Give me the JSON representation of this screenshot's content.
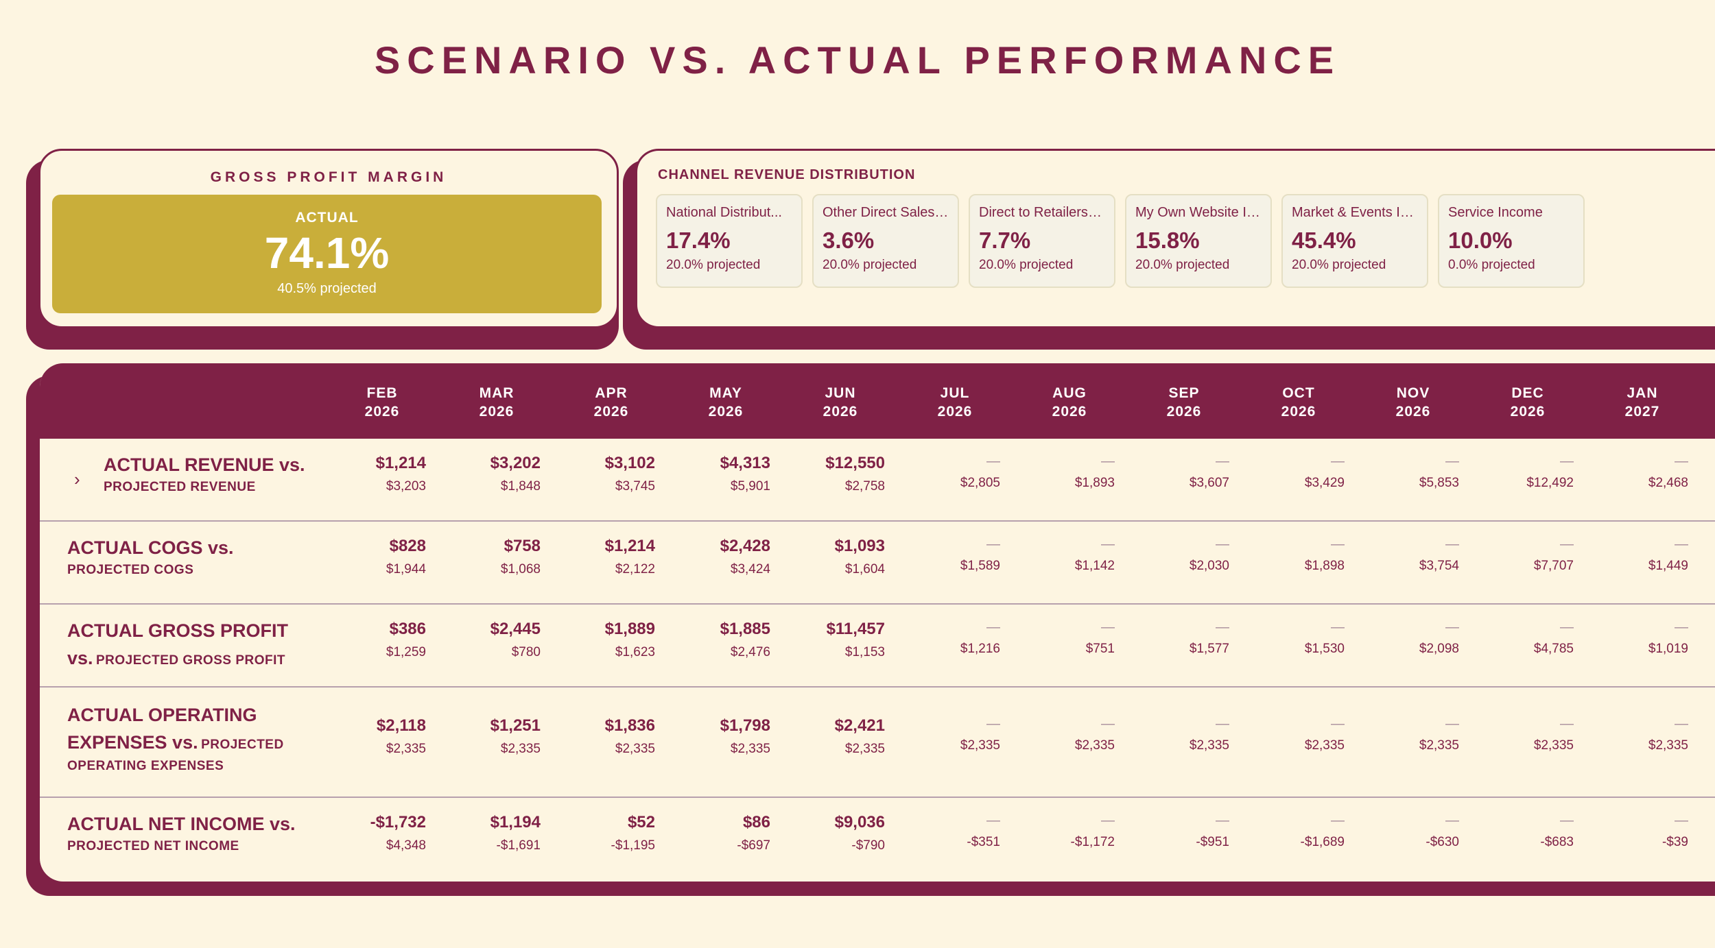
{
  "title": "SCENARIO VS. ACTUAL PERFORMANCE",
  "gross_profit": {
    "title": "GROSS PROFIT MARGIN",
    "label": "ACTUAL",
    "value": "74.1%",
    "projected": "40.5% projected"
  },
  "channels": {
    "title": "CHANNEL REVENUE DISTRIBUTION",
    "items": [
      {
        "name": "National Distribut...",
        "pct": "17.4%",
        "projected": "20.0% projected"
      },
      {
        "name": "Other Direct Sales ...",
        "pct": "3.6%",
        "projected": "20.0% projected"
      },
      {
        "name": "Direct to Retailers I...",
        "pct": "7.7%",
        "projected": "20.0% projected"
      },
      {
        "name": "My Own Website In...",
        "pct": "15.8%",
        "projected": "20.0% projected"
      },
      {
        "name": "Market & Events In...",
        "pct": "45.4%",
        "projected": "20.0% projected"
      },
      {
        "name": "Service Income",
        "pct": "10.0%",
        "projected": "0.0% projected"
      }
    ]
  },
  "table": {
    "columns": [
      {
        "month": "FEB",
        "year": "2026"
      },
      {
        "month": "MAR",
        "year": "2026"
      },
      {
        "month": "APR",
        "year": "2026"
      },
      {
        "month": "MAY",
        "year": "2026"
      },
      {
        "month": "JUN",
        "year": "2026"
      },
      {
        "month": "JUL",
        "year": "2026"
      },
      {
        "month": "AUG",
        "year": "2026"
      },
      {
        "month": "SEP",
        "year": "2026"
      },
      {
        "month": "OCT",
        "year": "2026"
      },
      {
        "month": "NOV",
        "year": "2026"
      },
      {
        "month": "DEC",
        "year": "2026"
      },
      {
        "month": "JAN",
        "year": "2027"
      }
    ],
    "dash": "—",
    "rows": [
      {
        "label_l1": "ACTUAL REVENUE vs.",
        "label_l2": "PROJECTED REVENUE",
        "actual": [
          "$1,214",
          "$3,202",
          "$3,102",
          "$4,313",
          "$12,550"
        ],
        "projected": [
          "$3,203",
          "$1,848",
          "$3,745",
          "$5,901",
          "$2,758",
          "$2,805",
          "$1,893",
          "$3,607",
          "$3,429",
          "$5,853",
          "$12,492",
          "$2,468"
        ]
      },
      {
        "label_l1": "ACTUAL COGS vs.",
        "label_l2": "PROJECTED COGS",
        "actual": [
          "$828",
          "$758",
          "$1,214",
          "$2,428",
          "$1,093"
        ],
        "projected": [
          "$1,944",
          "$1,068",
          "$2,122",
          "$3,424",
          "$1,604",
          "$1,589",
          "$1,142",
          "$2,030",
          "$1,898",
          "$3,754",
          "$7,707",
          "$1,449"
        ]
      },
      {
        "label_l1": "ACTUAL GROSS PROFIT",
        "label_l2a": "vs.",
        "label_l2b": "PROJECTED GROSS PROFIT",
        "actual": [
          "$386",
          "$2,445",
          "$1,889",
          "$1,885",
          "$11,457"
        ],
        "projected": [
          "$1,259",
          "$780",
          "$1,623",
          "$2,476",
          "$1,153",
          "$1,216",
          "$751",
          "$1,577",
          "$1,530",
          "$2,098",
          "$4,785",
          "$1,019"
        ]
      },
      {
        "label_l1": "ACTUAL OPERATING",
        "label_l2a": "EXPENSES vs.",
        "label_l2b": "PROJECTED",
        "label_l3": "OPERATING EXPENSES",
        "actual": [
          "$2,118",
          "$1,251",
          "$1,836",
          "$1,798",
          "$2,421"
        ],
        "projected": [
          "$2,335",
          "$2,335",
          "$2,335",
          "$2,335",
          "$2,335",
          "$2,335",
          "$2,335",
          "$2,335",
          "$2,335",
          "$2,335",
          "$2,335",
          "$2,335"
        ]
      },
      {
        "label_l1": "ACTUAL NET INCOME vs.",
        "label_l2": "PROJECTED NET INCOME",
        "actual": [
          "-$1,732",
          "$1,194",
          "$52",
          "$86",
          "$9,036"
        ],
        "projected": [
          "$4,348",
          "-$1,691",
          "-$1,195",
          "-$697",
          "-$790",
          "-$351",
          "-$1,172",
          "-$951",
          "-$1,689",
          "-$630",
          "-$683",
          "-$39"
        ]
      }
    ]
  }
}
